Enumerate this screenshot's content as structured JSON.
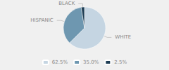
{
  "chart_data": {
    "type": "pie",
    "categories": [
      "WHITE",
      "HISPANIC",
      "BLACK"
    ],
    "values": [
      62.5,
      35.0,
      2.5
    ],
    "value_labels": [
      "62.5%",
      "35.0%",
      "2.5%"
    ],
    "colors": [
      "#c5d5e2",
      "#6e97b0",
      "#1e3d54"
    ],
    "legend": "bottom"
  }
}
